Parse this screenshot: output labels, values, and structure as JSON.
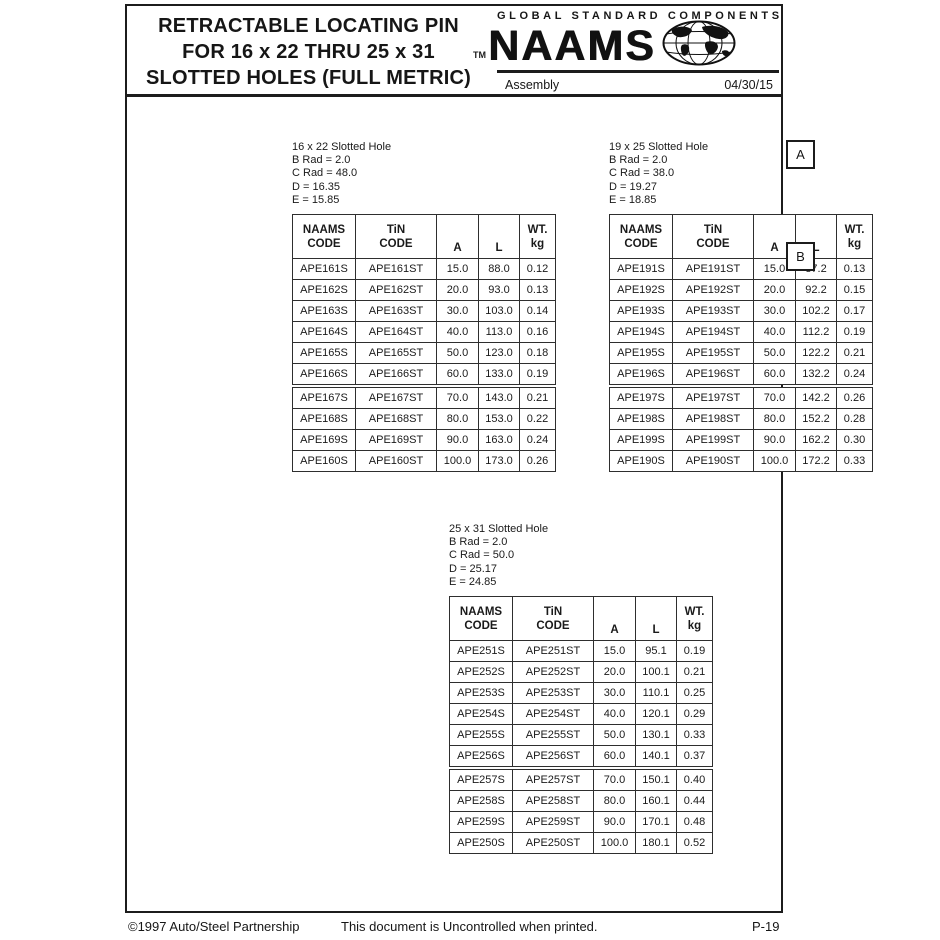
{
  "header": {
    "title_lines": [
      "RETRACTABLE LOCATING PIN",
      "FOR 16 x 22 THRU 25 x 31",
      "SLOTTED HOLES (FULL METRIC)"
    ],
    "brand": {
      "tagline": "GLOBAL STANDARD COMPONENTS",
      "tm": "TM",
      "name": "NAAMS",
      "category": "Assembly",
      "date": "04/30/15"
    }
  },
  "icons": {
    "globe": "globe-icon"
  },
  "side_labels": {
    "a": "A",
    "b": "B"
  },
  "tables": [
    {
      "info_lines": [
        "16 x 22 Slotted Hole",
        "B Rad = 2.0",
        "C Rad = 48.0",
        "D = 16.35",
        "E = 15.85"
      ],
      "headers": [
        "NAAMS\nCODE",
        "TiN\nCODE",
        "A",
        "L",
        "WT.\nkg"
      ],
      "rows_top": [
        [
          "APE161S",
          "APE161ST",
          "15.0",
          "88.0",
          "0.12"
        ],
        [
          "APE162S",
          "APE162ST",
          "20.0",
          "93.0",
          "0.13"
        ],
        [
          "APE163S",
          "APE163ST",
          "30.0",
          "103.0",
          "0.14"
        ],
        [
          "APE164S",
          "APE164ST",
          "40.0",
          "113.0",
          "0.16"
        ],
        [
          "APE165S",
          "APE165ST",
          "50.0",
          "123.0",
          "0.18"
        ],
        [
          "APE166S",
          "APE166ST",
          "60.0",
          "133.0",
          "0.19"
        ]
      ],
      "rows_bottom": [
        [
          "APE167S",
          "APE167ST",
          "70.0",
          "143.0",
          "0.21"
        ],
        [
          "APE168S",
          "APE168ST",
          "80.0",
          "153.0",
          "0.22"
        ],
        [
          "APE169S",
          "APE169ST",
          "90.0",
          "163.0",
          "0.24"
        ],
        [
          "APE160S",
          "APE160ST",
          "100.0",
          "173.0",
          "0.26"
        ]
      ]
    },
    {
      "info_lines": [
        "19 x 25 Slotted Hole",
        "B Rad = 2.0",
        "C Rad = 38.0",
        "D = 19.27",
        "E = 18.85"
      ],
      "headers": [
        "NAAMS\nCODE",
        "TiN\nCODE",
        "A",
        "L",
        "WT.\nkg"
      ],
      "rows_top": [
        [
          "APE191S",
          "APE191ST",
          "15.0",
          "87.2",
          "0.13"
        ],
        [
          "APE192S",
          "APE192ST",
          "20.0",
          "92.2",
          "0.15"
        ],
        [
          "APE193S",
          "APE193ST",
          "30.0",
          "102.2",
          "0.17"
        ],
        [
          "APE194S",
          "APE194ST",
          "40.0",
          "112.2",
          "0.19"
        ],
        [
          "APE195S",
          "APE195ST",
          "50.0",
          "122.2",
          "0.21"
        ],
        [
          "APE196S",
          "APE196ST",
          "60.0",
          "132.2",
          "0.24"
        ]
      ],
      "rows_bottom": [
        [
          "APE197S",
          "APE197ST",
          "70.0",
          "142.2",
          "0.26"
        ],
        [
          "APE198S",
          "APE198ST",
          "80.0",
          "152.2",
          "0.28"
        ],
        [
          "APE199S",
          "APE199ST",
          "90.0",
          "162.2",
          "0.30"
        ],
        [
          "APE190S",
          "APE190ST",
          "100.0",
          "172.2",
          "0.33"
        ]
      ]
    },
    {
      "info_lines": [
        "25 x 31 Slotted Hole",
        "B Rad = 2.0",
        "C Rad = 50.0",
        "D = 25.17",
        "E = 24.85"
      ],
      "headers": [
        "NAAMS\nCODE",
        "TiN\nCODE",
        "A",
        "L",
        "WT.\nkg"
      ],
      "rows_top": [
        [
          "APE251S",
          "APE251ST",
          "15.0",
          "95.1",
          "0.19"
        ],
        [
          "APE252S",
          "APE252ST",
          "20.0",
          "100.1",
          "0.21"
        ],
        [
          "APE253S",
          "APE253ST",
          "30.0",
          "110.1",
          "0.25"
        ],
        [
          "APE254S",
          "APE254ST",
          "40.0",
          "120.1",
          "0.29"
        ],
        [
          "APE255S",
          "APE255ST",
          "50.0",
          "130.1",
          "0.33"
        ],
        [
          "APE256S",
          "APE256ST",
          "60.0",
          "140.1",
          "0.37"
        ]
      ],
      "rows_bottom": [
        [
          "APE257S",
          "APE257ST",
          "70.0",
          "150.1",
          "0.40"
        ],
        [
          "APE258S",
          "APE258ST",
          "80.0",
          "160.1",
          "0.44"
        ],
        [
          "APE259S",
          "APE259ST",
          "90.0",
          "170.1",
          "0.48"
        ],
        [
          "APE250S",
          "APE250ST",
          "100.0",
          "180.1",
          "0.52"
        ]
      ]
    }
  ],
  "footer": {
    "copyright": "©1997 Auto/Steel Partnership",
    "notice": "This document is Uncontrolled when printed.",
    "page_number": "P-19"
  }
}
